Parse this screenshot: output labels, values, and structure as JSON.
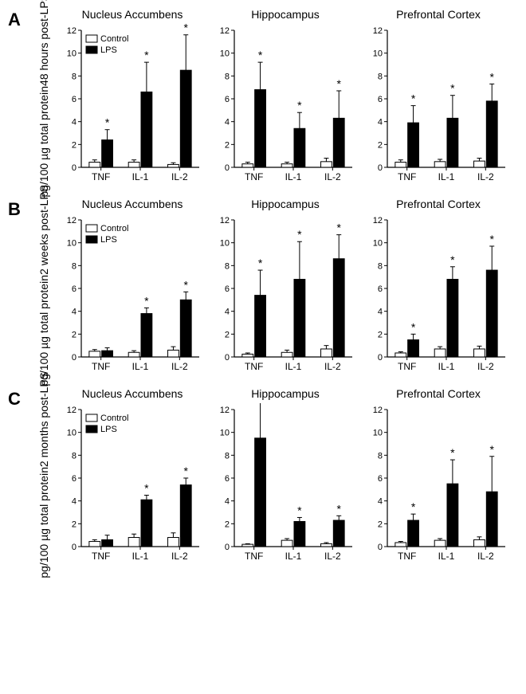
{
  "global": {
    "ylim": [
      0,
      12
    ],
    "ytick_step": 2,
    "categories": [
      "TNF",
      "IL-1",
      "IL-2"
    ],
    "background_color": "#ffffff",
    "axis_color": "#000000",
    "colors": {
      "control": "#ffffff",
      "lps": "#000000"
    },
    "legend": {
      "control": "Control",
      "lps": "LPS"
    },
    "sig_marker": "*",
    "ylabel_bottom": "pg/100 µg total protein"
  },
  "panels": [
    {
      "letter": "A",
      "ylabel_top": "48 hours post-LPS",
      "subplots": [
        {
          "title": "Nucleus Accumbens",
          "show_legend": true,
          "bars": [
            {
              "ctrl": 0.45,
              "ctrl_err": 0.2,
              "lps": 2.4,
              "lps_err": 0.9,
              "sig": true
            },
            {
              "ctrl": 0.45,
              "ctrl_err": 0.2,
              "lps": 6.6,
              "lps_err": 2.6,
              "sig": true
            },
            {
              "ctrl": 0.25,
              "ctrl_err": 0.15,
              "lps": 8.5,
              "lps_err": 3.1,
              "sig": true
            }
          ]
        },
        {
          "title": "Hippocampus",
          "show_legend": false,
          "bars": [
            {
              "ctrl": 0.3,
              "ctrl_err": 0.15,
              "lps": 6.8,
              "lps_err": 2.4,
              "sig": true
            },
            {
              "ctrl": 0.3,
              "ctrl_err": 0.15,
              "lps": 3.4,
              "lps_err": 1.4,
              "sig": true
            },
            {
              "ctrl": 0.5,
              "ctrl_err": 0.3,
              "lps": 4.3,
              "lps_err": 2.4,
              "sig": true
            }
          ]
        },
        {
          "title": "Prefrontal Cortex",
          "show_legend": false,
          "bars": [
            {
              "ctrl": 0.45,
              "ctrl_err": 0.2,
              "lps": 3.9,
              "lps_err": 1.5,
              "sig": true
            },
            {
              "ctrl": 0.5,
              "ctrl_err": 0.2,
              "lps": 4.3,
              "lps_err": 2.0,
              "sig": true
            },
            {
              "ctrl": 0.55,
              "ctrl_err": 0.25,
              "lps": 5.8,
              "lps_err": 1.5,
              "sig": true
            }
          ]
        }
      ]
    },
    {
      "letter": "B",
      "ylabel_top": "2 weeks post-LPS",
      "subplots": [
        {
          "title": "Nucleus Accumbens",
          "show_legend": true,
          "bars": [
            {
              "ctrl": 0.5,
              "ctrl_err": 0.15,
              "lps": 0.55,
              "lps_err": 0.25,
              "sig": false
            },
            {
              "ctrl": 0.4,
              "ctrl_err": 0.15,
              "lps": 3.8,
              "lps_err": 0.5,
              "sig": true
            },
            {
              "ctrl": 0.6,
              "ctrl_err": 0.3,
              "lps": 5.0,
              "lps_err": 0.7,
              "sig": true
            }
          ]
        },
        {
          "title": "Hippocampus",
          "show_legend": false,
          "bars": [
            {
              "ctrl": 0.25,
              "ctrl_err": 0.1,
              "lps": 5.4,
              "lps_err": 2.2,
              "sig": true
            },
            {
              "ctrl": 0.4,
              "ctrl_err": 0.2,
              "lps": 6.8,
              "lps_err": 3.3,
              "sig": true
            },
            {
              "ctrl": 0.7,
              "ctrl_err": 0.3,
              "lps": 8.6,
              "lps_err": 2.1,
              "sig": true
            }
          ]
        },
        {
          "title": "Prefrontal Cortex",
          "show_legend": false,
          "bars": [
            {
              "ctrl": 0.35,
              "ctrl_err": 0.1,
              "lps": 1.5,
              "lps_err": 0.5,
              "sig": true
            },
            {
              "ctrl": 0.7,
              "ctrl_err": 0.2,
              "lps": 6.8,
              "lps_err": 1.1,
              "sig": true
            },
            {
              "ctrl": 0.7,
              "ctrl_err": 0.25,
              "lps": 7.6,
              "lps_err": 2.1,
              "sig": true
            }
          ]
        }
      ]
    },
    {
      "letter": "C",
      "ylabel_top": "2 months post-LPS",
      "subplots": [
        {
          "title": "Nucleus Accumbens",
          "show_legend": true,
          "bars": [
            {
              "ctrl": 0.45,
              "ctrl_err": 0.15,
              "lps": 0.6,
              "lps_err": 0.4,
              "sig": false
            },
            {
              "ctrl": 0.8,
              "ctrl_err": 0.3,
              "lps": 4.1,
              "lps_err": 0.4,
              "sig": true
            },
            {
              "ctrl": 0.8,
              "ctrl_err": 0.4,
              "lps": 5.4,
              "lps_err": 0.6,
              "sig": true
            }
          ]
        },
        {
          "title": "Hippocampus",
          "show_legend": false,
          "bars": [
            {
              "ctrl": 0.2,
              "ctrl_err": 0.05,
              "lps": 9.5,
              "lps_err": 3.4,
              "sig": true
            },
            {
              "ctrl": 0.55,
              "ctrl_err": 0.15,
              "lps": 2.2,
              "lps_err": 0.35,
              "sig": true
            },
            {
              "ctrl": 0.25,
              "ctrl_err": 0.1,
              "lps": 2.3,
              "lps_err": 0.4,
              "sig": true
            }
          ]
        },
        {
          "title": "Prefrontal Cortex",
          "show_legend": false,
          "bars": [
            {
              "ctrl": 0.35,
              "ctrl_err": 0.1,
              "lps": 2.3,
              "lps_err": 0.55,
              "sig": true
            },
            {
              "ctrl": 0.55,
              "ctrl_err": 0.15,
              "lps": 5.5,
              "lps_err": 2.1,
              "sig": true
            },
            {
              "ctrl": 0.6,
              "ctrl_err": 0.25,
              "lps": 4.8,
              "lps_err": 3.1,
              "sig": true
            }
          ]
        }
      ]
    }
  ]
}
